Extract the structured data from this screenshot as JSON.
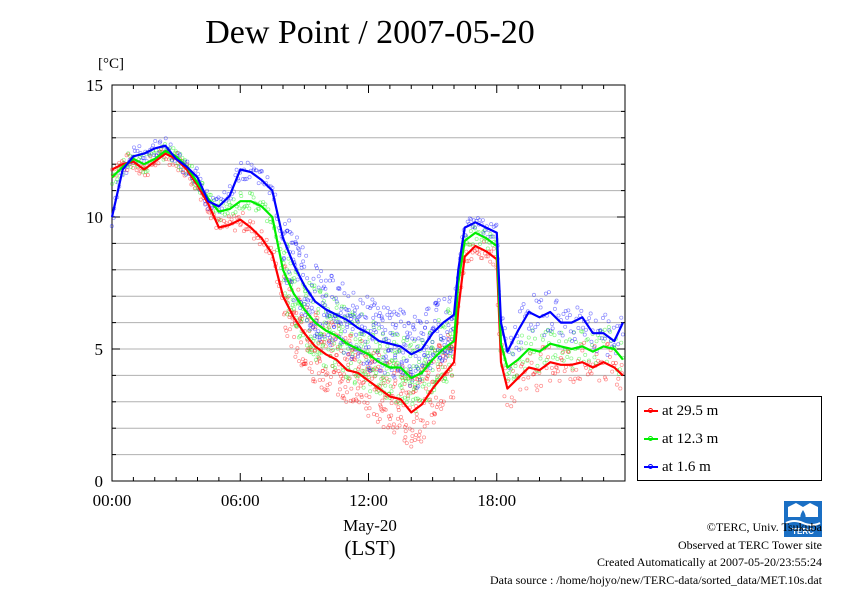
{
  "title": "Dew Point / 2007-05-20",
  "unit_label": "[°C]",
  "x_sub_label": "May-20",
  "x_label": "(LST)",
  "credits": [
    "©TERC, Univ. Tsukuba",
    "Observed at TERC Tower site",
    "Created Automatically at 2007-05-20/23:55:24",
    "Data source : /home/hojyo/new/TERC-data/sorted_data/MET.10s.dat"
  ],
  "logo_text": "TERC",
  "chart_data": {
    "type": "line",
    "title": "Dew Point / 2007-05-20",
    "ylabel": "[°C]",
    "xlabel": "(LST)",
    "xlim": [
      0,
      24
    ],
    "ylim": [
      0,
      15
    ],
    "x_ticks": [
      {
        "value": 0,
        "label": "00:00"
      },
      {
        "value": 6,
        "label": "06:00"
      },
      {
        "value": 12,
        "label": "12:00"
      },
      {
        "value": 18,
        "label": "18:00"
      }
    ],
    "y_ticks": [
      {
        "value": 0,
        "label": "0"
      },
      {
        "value": 5,
        "label": "5"
      },
      {
        "value": 10,
        "label": "10"
      },
      {
        "value": 15,
        "label": "15"
      }
    ],
    "grid": "horizontal",
    "legend_position": "right-bottom",
    "series": [
      {
        "name": "at 29.5 m",
        "color": "#ff0000",
        "x": [
          0,
          0.5,
          1,
          1.5,
          2,
          2.5,
          3,
          3.5,
          4,
          4.5,
          5,
          5.5,
          6,
          6.5,
          7,
          7.5,
          8,
          8.5,
          9,
          9.5,
          10,
          10.5,
          11,
          11.5,
          12,
          12.5,
          13,
          13.5,
          14,
          14.5,
          15,
          15.5,
          16,
          16.2,
          16.5,
          17,
          17.5,
          18,
          18.2,
          18.5,
          19,
          19.5,
          20,
          20.5,
          21,
          21.5,
          22,
          22.5,
          23,
          23.5,
          23.9
        ],
        "y": [
          11.8,
          12.0,
          12.1,
          11.8,
          12.1,
          12.4,
          12.2,
          11.8,
          11.2,
          10.5,
          9.6,
          9.7,
          9.9,
          9.6,
          9.2,
          8.6,
          7.0,
          6.2,
          5.6,
          5.1,
          4.8,
          4.6,
          4.2,
          4.1,
          3.8,
          3.5,
          3.2,
          3.1,
          2.6,
          2.9,
          3.5,
          4.0,
          4.5,
          6.5,
          8.5,
          8.9,
          8.7,
          8.4,
          4.5,
          3.5,
          3.9,
          4.3,
          4.2,
          4.5,
          4.4,
          4.4,
          4.5,
          4.3,
          4.5,
          4.3,
          4.0
        ]
      },
      {
        "name": "at 12.3 m",
        "color": "#00ee00",
        "x": [
          0,
          0.5,
          1,
          1.5,
          2,
          2.5,
          3,
          3.5,
          4,
          4.5,
          5,
          5.5,
          6,
          6.5,
          7,
          7.5,
          8,
          8.5,
          9,
          9.5,
          10,
          10.5,
          11,
          11.5,
          12,
          12.5,
          13,
          13.5,
          14,
          14.5,
          15,
          15.5,
          16,
          16.2,
          16.5,
          17,
          17.5,
          18,
          18.2,
          18.5,
          19,
          19.5,
          20,
          20.5,
          21,
          21.5,
          22,
          22.5,
          23,
          23.5,
          23.9
        ],
        "y": [
          11.5,
          11.9,
          12.2,
          12.0,
          12.2,
          12.5,
          12.3,
          11.9,
          11.3,
          10.7,
          10.2,
          10.3,
          10.6,
          10.6,
          10.4,
          10.0,
          8.0,
          7.1,
          6.5,
          6.0,
          5.7,
          5.5,
          5.2,
          5.0,
          4.8,
          4.5,
          4.3,
          4.3,
          3.9,
          4.1,
          4.6,
          5.0,
          5.3,
          7.5,
          9.1,
          9.4,
          9.2,
          8.9,
          5.2,
          4.3,
          4.6,
          5.0,
          4.9,
          5.2,
          5.1,
          5.0,
          5.1,
          4.9,
          5.1,
          5.0,
          4.6
        ]
      },
      {
        "name": "at 1.6 m",
        "color": "#0000ff",
        "x": [
          0,
          0.5,
          1,
          1.5,
          2,
          2.5,
          3,
          3.5,
          4,
          4.5,
          5,
          5.5,
          6,
          6.5,
          7,
          7.5,
          8,
          8.5,
          9,
          9.5,
          10,
          10.5,
          11,
          11.5,
          12,
          12.5,
          13,
          13.5,
          14,
          14.5,
          15,
          15.5,
          16,
          16.2,
          16.5,
          17,
          17.5,
          18,
          18.2,
          18.5,
          19,
          19.5,
          20,
          20.5,
          21,
          21.5,
          22,
          22.5,
          23,
          23.5,
          23.9
        ],
        "y": [
          10.0,
          11.8,
          12.3,
          12.4,
          12.6,
          12.7,
          12.2,
          11.9,
          11.5,
          10.6,
          10.4,
          10.8,
          11.8,
          11.7,
          11.4,
          11.0,
          9.2,
          8.2,
          7.4,
          6.8,
          6.5,
          6.3,
          6.1,
          5.8,
          5.6,
          5.3,
          5.2,
          5.1,
          4.8,
          5.0,
          5.6,
          6.0,
          6.3,
          8.0,
          9.6,
          9.8,
          9.6,
          9.4,
          6.0,
          4.9,
          5.7,
          6.4,
          6.2,
          6.4,
          6.0,
          6.0,
          6.2,
          5.6,
          5.6,
          5.3,
          6.0
        ]
      }
    ]
  }
}
